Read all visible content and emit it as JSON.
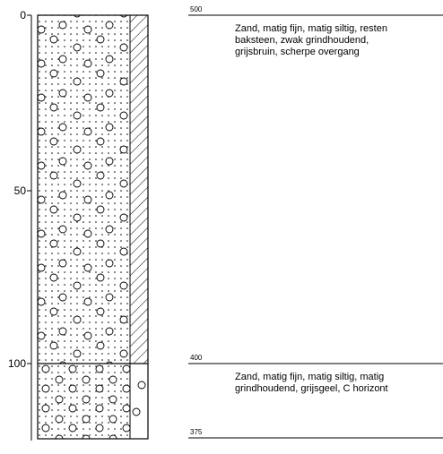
{
  "axis": {
    "ticks": [
      "0",
      "50",
      "100"
    ]
  },
  "layers": [
    {
      "level": "500",
      "description": [
        "Zand, matig fijn, matig siltig, resten",
        "baksteen, zwak grindhoudend,",
        "grijsbruin, scherpe overgang"
      ]
    },
    {
      "level": "400",
      "description": [
        "Zand, matig fijn, matig siltig, matig",
        "grindhoudend, grijsgeel, C horizont"
      ]
    }
  ],
  "bottom": {
    "level": "375"
  }
}
